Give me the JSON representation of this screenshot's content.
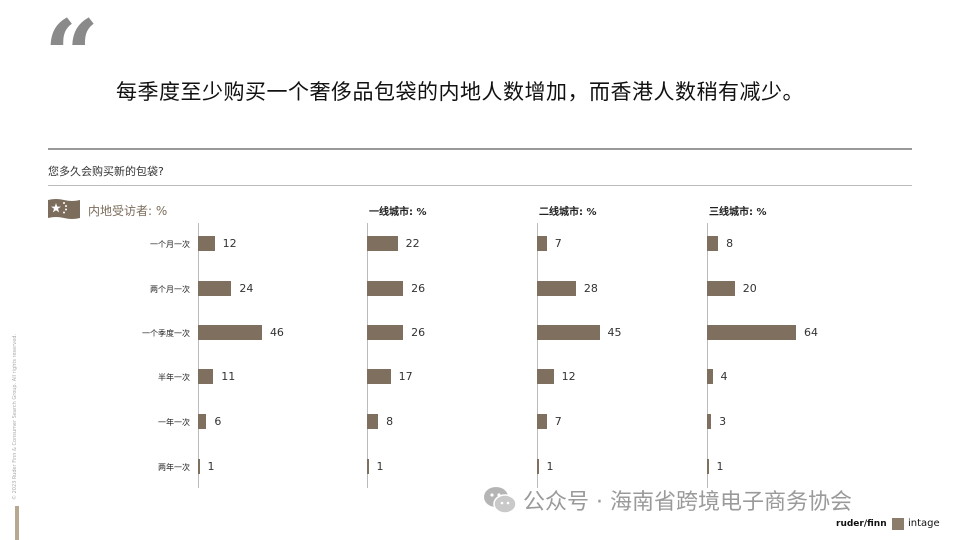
{
  "headline": "每季度至少购买一个奢侈品包袋的内地人数增加，而香港人数稍有减少。",
  "question": "您多久会购买新的包袋?",
  "mainland_label": "内地受访者: %",
  "copyright": "© 2023 Ruder Finn & Consumer Search Group. All rights reserved.",
  "watermark": "公众号 · 海南省跨境电子商务协会",
  "logos": {
    "ruder": "ruder/finn",
    "intage": "intage"
  },
  "colors": {
    "bar": "#7f6f5e",
    "accent": "#7b6c5b"
  },
  "chart_data": [
    {
      "type": "bar",
      "title": "内地受访者: %",
      "categories": [
        "一个月一次",
        "两个月一次",
        "一个季度一次",
        "半年一次",
        "一年一次",
        "两年一次"
      ],
      "values": [
        12,
        24,
        46,
        11,
        6,
        1
      ]
    },
    {
      "type": "bar",
      "title": "一线城市: %",
      "categories": [
        "一个月一次",
        "两个月一次",
        "一个季度一次",
        "半年一次",
        "一年一次",
        "两年一次"
      ],
      "values": [
        22,
        26,
        26,
        17,
        8,
        1
      ]
    },
    {
      "type": "bar",
      "title": "二线城市: %",
      "categories": [
        "一个月一次",
        "两个月一次",
        "一个季度一次",
        "半年一次",
        "一年一次",
        "两年一次"
      ],
      "values": [
        7,
        28,
        45,
        12,
        7,
        1
      ]
    },
    {
      "type": "bar",
      "title": "三线城市: %",
      "categories": [
        "一个月一次",
        "两个月一次",
        "一个季度一次",
        "半年一次",
        "一年一次",
        "两年一次"
      ],
      "values": [
        8,
        20,
        64,
        4,
        3,
        1
      ]
    }
  ]
}
